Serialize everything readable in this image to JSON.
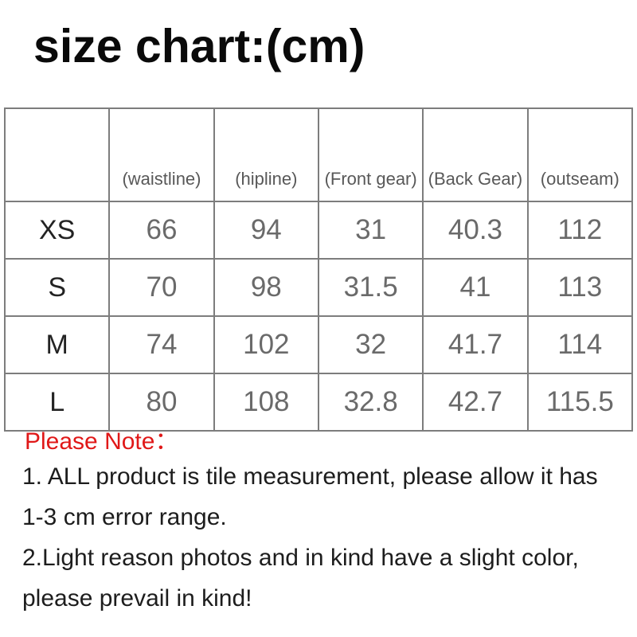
{
  "page": {
    "title": "size chart:(cm)"
  },
  "table": {
    "headers": [
      "",
      "(waistline)",
      "(hipline)",
      "(Front gear)",
      "(Back Gear)",
      "(outseam)"
    ],
    "rows": [
      [
        "XS",
        "66",
        "94",
        "31",
        "40.3",
        "112"
      ],
      [
        "S",
        "70",
        "98",
        "31.5",
        "41",
        "113"
      ],
      [
        "M",
        "74",
        "102",
        "32",
        "41.7",
        "114"
      ],
      [
        "L",
        "80",
        "108",
        "32.8",
        "42.7",
        "115.5"
      ]
    ]
  },
  "notes": {
    "heading": "Please Note：",
    "lines": [
      "1. ALL product is tile measurement, please allow it has",
      "1-3 cm error range.",
      "2.Light reason photos and in kind have a slight color,",
      "please prevail in kind!"
    ]
  },
  "colors": {
    "note_red": "#e01818",
    "table_border": "#7d7d7d",
    "value_gray": "#6a6a6a",
    "size_label_dark": "#232323",
    "title_black": "#0a0a0a"
  }
}
